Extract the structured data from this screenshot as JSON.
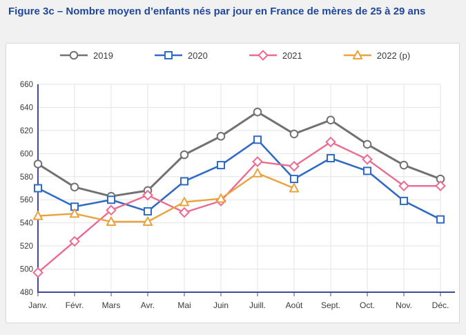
{
  "page": {
    "title": "Figure 3c – Nombre moyen d’enfants nés par jour en France de mères de 25 à 29 ans",
    "title_color": "#1f4799",
    "background_color": "#f1f1f2",
    "panel_background": "#ffffff"
  },
  "legend": {
    "position": "top",
    "items": [
      {
        "label": "2019",
        "color": "#717171",
        "marker": "circle"
      },
      {
        "label": "2020",
        "color": "#2f6bc4",
        "marker": "square"
      },
      {
        "label": "2021",
        "color": "#ec6a90",
        "marker": "diamond"
      },
      {
        "label": "2022 (p)",
        "color": "#eaa23c",
        "marker": "triangle"
      }
    ]
  },
  "chart_data": {
    "type": "line",
    "title": "Nombre moyen d’enfants nés par jour en France de mères de 25 à 29 ans",
    "categories": [
      "Janv.",
      "Févr.",
      "Mars",
      "Avr.",
      "Mai",
      "Juin",
      "Juill.",
      "Août",
      "Sept.",
      "Oct.",
      "Nov.",
      "Déc."
    ],
    "series": [
      {
        "name": "2019",
        "color": "#717171",
        "marker": "circle",
        "line_width": 3,
        "values": [
          591,
          571,
          563,
          568,
          599,
          615,
          636,
          617,
          629,
          608,
          590,
          578
        ]
      },
      {
        "name": "2020",
        "color": "#2f6bc4",
        "marker": "square",
        "line_width": 2.6,
        "values": [
          570,
          554,
          560,
          550,
          576,
          590,
          612,
          578,
          596,
          585,
          559,
          543
        ]
      },
      {
        "name": "2021",
        "color": "#ec6a90",
        "marker": "diamond",
        "line_width": 2.4,
        "values": [
          497,
          524,
          551,
          564,
          549,
          559,
          593,
          589,
          610,
          595,
          572,
          572
        ]
      },
      {
        "name": "2022 (p)",
        "color": "#eaa23c",
        "marker": "triangle",
        "line_width": 2.4,
        "values": [
          546,
          548,
          541,
          541,
          558,
          561,
          583,
          570,
          null,
          null,
          null,
          null
        ]
      }
    ],
    "xlabel": "",
    "ylabel": "",
    "ylim": [
      480,
      660
    ],
    "ytick_step": 20,
    "grid": true,
    "legend_position": "top",
    "axis_color": "#3f4a9d",
    "grid_color": "#e3e3e3",
    "tick_label_color": "#3a3a3a"
  }
}
